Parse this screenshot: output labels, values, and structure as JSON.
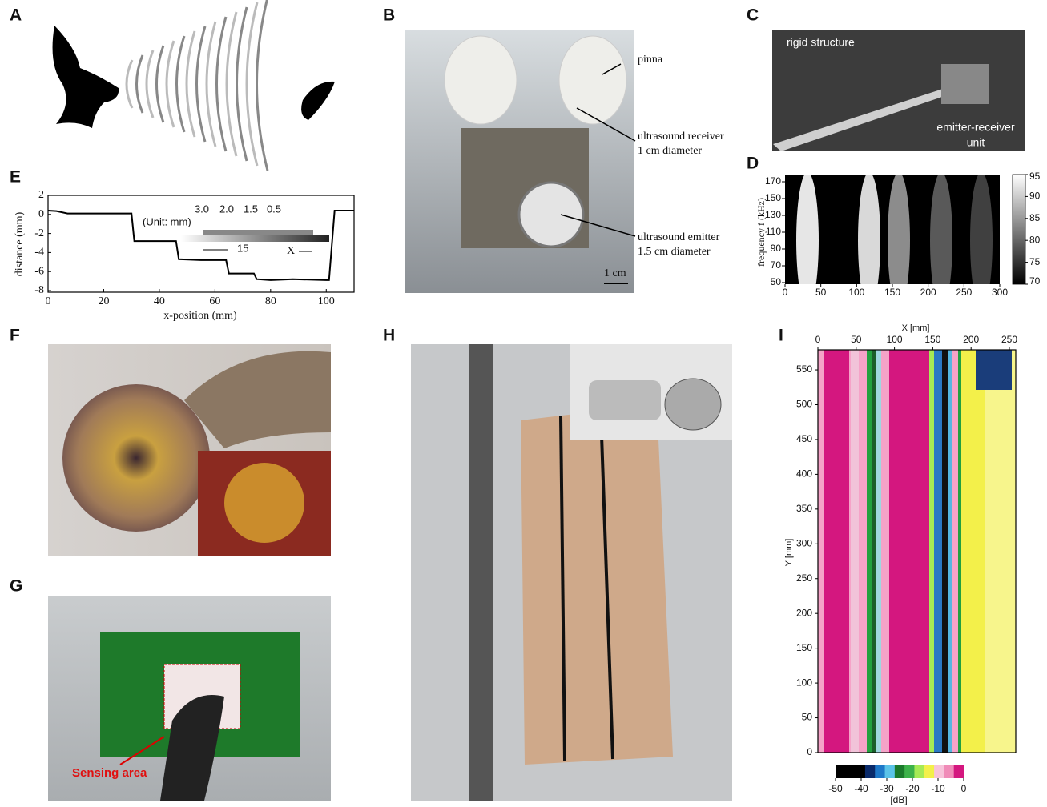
{
  "figure": {
    "A": {
      "label": "A"
    },
    "B": {
      "label": "B",
      "pinna": "pinna",
      "receiver": [
        "ultrasound receiver",
        "1 cm diameter"
      ],
      "emitter": [
        "ultrasound emitter",
        "1.5 cm diameter"
      ],
      "scale": "1 cm"
    },
    "C": {
      "label": "C",
      "rigid": "rigid structure",
      "unit": [
        "emitter-receiver",
        "unit"
      ]
    },
    "D": {
      "label": "D",
      "y_label": "frequency f (kHz)",
      "xticks": [
        0,
        50,
        100,
        150,
        200,
        250,
        300
      ],
      "yticks": [
        50,
        70,
        90,
        110,
        130,
        150,
        170
      ],
      "colorbar_ticks": [
        70,
        75,
        80,
        85,
        90,
        95
      ]
    },
    "E": {
      "label": "E",
      "x_label": "x-position (mm)",
      "y_label": "distance (mm)",
      "xticks": [
        0,
        20,
        40,
        60,
        80,
        100
      ],
      "yticks": [
        -8,
        -6,
        -4,
        -2,
        0,
        2
      ],
      "profile": {
        "x": [
          0,
          3,
          7,
          30,
          31,
          34,
          46,
          47,
          55,
          64,
          65,
          74,
          75,
          80,
          88,
          100,
          101,
          103,
          110
        ],
        "y": [
          0.4,
          0.35,
          0.1,
          0.1,
          -2.8,
          -2.8,
          -2.8,
          -4.7,
          -4.8,
          -4.8,
          -6.2,
          -6.2,
          -6.8,
          -6.9,
          -6.8,
          -6.9,
          -6.9,
          0.4,
          0.4
        ]
      },
      "inset": {
        "unit": "(Unit: mm)",
        "steps": [
          "3.0",
          "2.0",
          "1.5",
          "0.5"
        ],
        "width": "15",
        "axis": "X"
      }
    },
    "F": {
      "label": "F"
    },
    "G": {
      "label": "G",
      "sensing": "Sensing area"
    },
    "H": {
      "label": "H"
    },
    "I": {
      "label": "I",
      "x_label": "X [mm]",
      "y_label": "Y [mm]",
      "xticks": [
        0,
        50,
        100,
        150,
        200,
        250
      ],
      "yticks": [
        0,
        50,
        100,
        150,
        200,
        250,
        300,
        350,
        400,
        450,
        500,
        550
      ],
      "colorbar_ticks": [
        -50,
        -40,
        -30,
        -20,
        -10,
        0
      ],
      "colorbar_unit": "[dB]"
    }
  }
}
